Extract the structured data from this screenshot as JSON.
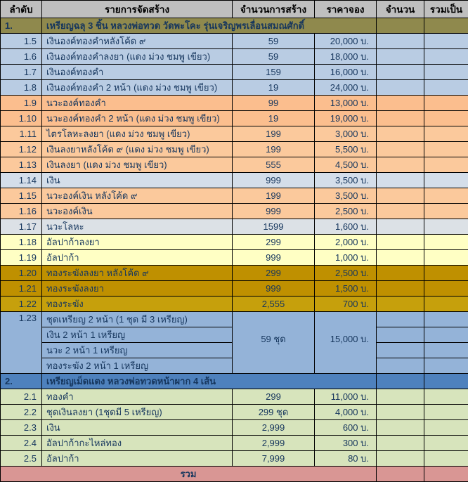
{
  "table": {
    "columns": [
      "ลำดับ",
      "รายการจัดสร้าง",
      "จำนวนการสร้าง",
      "ราคาจอง",
      "จำนวน",
      "รวมเป็น"
    ]
  },
  "colors": {
    "header_bg": "#BFBFBF",
    "text": "#16365D",
    "olive": "#8F894D",
    "blue": "#B9CCE3",
    "peach": "#FBBE8E",
    "peach2": "#FBC99C",
    "paleblue": "#D4DEEA",
    "paleblue2": "#DCE1E6",
    "yellow": "#FFFFC4",
    "gold": "#BF9000",
    "gold2": "#C6A00C",
    "setblue": "#94B3D8",
    "blue2": "#4E81BD",
    "green": "#D7E4BC",
    "pink": "#D99694",
    "border": "#000000"
  },
  "rows": [
    {
      "type": "section",
      "no": "1.",
      "label": "เหรียญฉลุ 3 ชิ้น หลวงพ่อทวด วัดพะโคะ รุ่นเจริญพรเลื่อนสมณศักดิ์",
      "bg": "olive"
    },
    {
      "type": "item",
      "no": "1.5",
      "label": "เงินองค์ทองคำหลังโค้ด ๙",
      "qty": "59",
      "price": "20,000 บ.",
      "bg": "blue"
    },
    {
      "type": "item",
      "no": "1.6",
      "label": "เงินองค์ทองคำลงยา (แดง ม่วง ชมพู เขียว)",
      "qty": "59",
      "price": "18,000 บ.",
      "bg": "blue"
    },
    {
      "type": "item",
      "no": "1.7",
      "label": "เงินองค์ทองคำ",
      "qty": "159",
      "price": "16,000 บ.",
      "bg": "blue"
    },
    {
      "type": "item",
      "no": "1.8",
      "label": "เงินองค์ทองคำ 2 หน้า (แดง ม่วง ชมพู เขียว)",
      "qty": "19",
      "price": "24,000 บ.",
      "bg": "blue"
    },
    {
      "type": "item",
      "no": "1.9",
      "label": "นวะองค์ทองคำ",
      "qty": "99",
      "price": "13,000 บ.",
      "bg": "peach"
    },
    {
      "type": "item",
      "no": "1.10",
      "label": "นวะองค์ทองคำ 2 หน้า (แดง ม่วง ชมพู เขียว)",
      "qty": "19",
      "price": "19,000 บ.",
      "bg": "peach"
    },
    {
      "type": "item",
      "no": "1.11",
      "label": "ไตรโลหะลงยา (แดง ม่วง ชมพู เขียว)",
      "qty": "199",
      "price": "3,000 บ.",
      "bg": "peach2"
    },
    {
      "type": "item",
      "no": "1.12",
      "label": "เงินลงยาหลังโค้ด ๙ (แดง ม่วง ชมพู เขียว)",
      "qty": "199",
      "price": "5,500 บ.",
      "bg": "peach2"
    },
    {
      "type": "item",
      "no": "1.13",
      "label": "เงินลงยา (แดง ม่วง ชมพู เขียว)",
      "qty": "555",
      "price": "4,500 บ.",
      "bg": "peach2"
    },
    {
      "type": "item",
      "no": "1.14",
      "label": "เงิน",
      "qty": "999",
      "price": "3,500 บ.",
      "bg": "paleblue"
    },
    {
      "type": "item",
      "no": "1.15",
      "label": "นวะองค์เงิน หลังโค้ด ๙",
      "qty": "199",
      "price": "3,500 บ.",
      "bg": "peach2"
    },
    {
      "type": "item",
      "no": "1.16",
      "label": "นวะองค์เงิน",
      "qty": "999",
      "price": "2,500 บ.",
      "bg": "peach2"
    },
    {
      "type": "item",
      "no": "1.17",
      "label": "นวะโลหะ",
      "qty": "1599",
      "price": "1,600 บ.",
      "bg": "paleblue2"
    },
    {
      "type": "item",
      "no": "1.18",
      "label": "อัลปาก้าลงยา",
      "qty": "299",
      "price": "2,000 บ.",
      "bg": "yellow"
    },
    {
      "type": "item",
      "no": "1.19",
      "label": "อัลปาก้า",
      "qty": "999",
      "price": "1,000 บ.",
      "bg": "yellow"
    },
    {
      "type": "item",
      "no": "1.20",
      "label": "ทองระฆังลงยา หลังโค้ด ๙",
      "qty": "299",
      "price": "2,500 บ.",
      "bg": "gold"
    },
    {
      "type": "item",
      "no": "1.21",
      "label": "ทองระฆังลงยา",
      "qty": "999",
      "price": "1,500 บ.",
      "bg": "gold"
    },
    {
      "type": "item",
      "no": "1.22",
      "label": "ทองระฆัง",
      "qty": "2,555",
      "price": "700 บ.",
      "bg": "gold2"
    },
    {
      "type": "set",
      "no": "1.23",
      "lines": [
        "ชุดเหรียญ 2 หน้า (1 ชุด มี 3 เหรียญ)",
        "เงิน 2 หน้า 1 เหรียญ",
        "นวะ 2 หน้า 1 เหรียญ",
        "ทองระฆัง 2 หน้า 1 เหรียญ"
      ],
      "qty": "59 ชุด",
      "price": "15,000 บ.",
      "bg": "setblue"
    },
    {
      "type": "section",
      "no": "2.",
      "label": "เหรียญเม็ดแตง หลวงพ่อทวดหน้าผาก 4 เส้น",
      "bg": "blue2"
    },
    {
      "type": "item",
      "no": "2.1",
      "label": "ทองคำ",
      "qty": "299",
      "price": "11,000 บ.",
      "bg": "green"
    },
    {
      "type": "item",
      "no": "2.2",
      "label": "ชุดเงินลงยา (1ชุดมี 5 เหรียญ)",
      "qty": "299 ชุด",
      "price": "4,000 บ.",
      "bg": "green"
    },
    {
      "type": "item",
      "no": "2.3",
      "label": "เงิน",
      "qty": "2,999",
      "price": "600 บ.",
      "bg": "green"
    },
    {
      "type": "item",
      "no": "2.4",
      "label": "อัลปาก้ากะไหล่ทอง",
      "qty": "2,999",
      "price": "300 บ.",
      "bg": "green"
    },
    {
      "type": "item",
      "no": "2.5",
      "label": "อัลปาก้า",
      "qty": "7,999",
      "price": "80 บ.",
      "bg": "green"
    },
    {
      "type": "footer",
      "label": "รวม",
      "bg": "pink"
    }
  ]
}
